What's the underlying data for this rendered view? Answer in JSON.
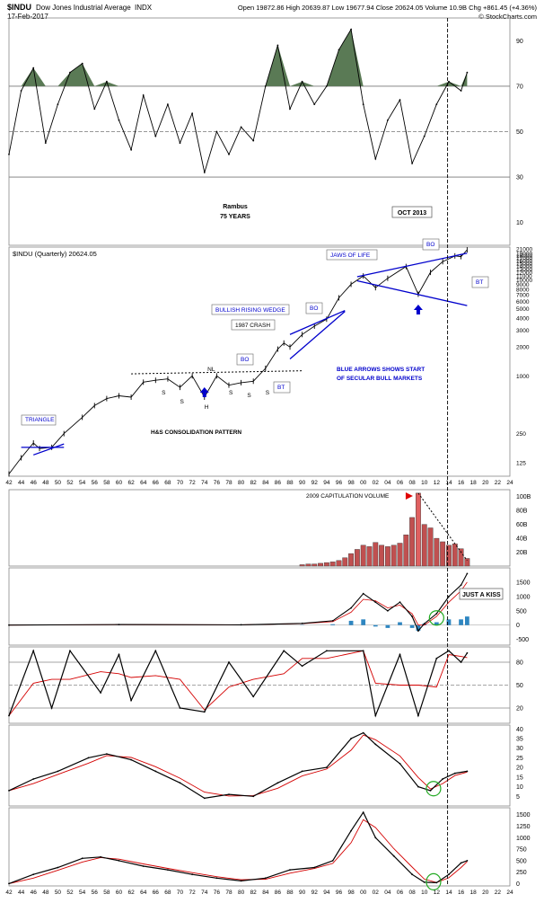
{
  "header": {
    "symbol": "$INDU",
    "name": "Dow Jones Industrial Average",
    "exchange": "INDX",
    "date": "17-Feb-2017",
    "quote": "Open 19872.86  High 20639.87  Low 19677.94  Close 20624.05  Volume 10.9B  Chg +861.45 (+4.36%)",
    "copyright": "© StockCharts.com"
  },
  "colors": {
    "price": "#000000",
    "overlay": "#d40000",
    "trendline": "#0000cc",
    "rsi_fill": "#5a7a55",
    "macd_hist": "#2e86c1",
    "volume_bar": "#c05050",
    "oct_line": "#000000",
    "circle": "#22aa22"
  },
  "chart_data": [
    {
      "id": "rsi-top",
      "type": "line",
      "title": "",
      "y_ticks": [
        "90",
        "70",
        "50",
        "30",
        "10"
      ],
      "ylim": [
        0,
        100
      ],
      "reference_lines": [
        70,
        50,
        30
      ],
      "annotations": {
        "rambus": "Rambus",
        "years": "75 YEARS",
        "oct": "OCT 2013"
      },
      "x": [
        1942,
        1944,
        1946,
        1948,
        1950,
        1952,
        1954,
        1956,
        1958,
        1960,
        1962,
        1964,
        1966,
        1968,
        1970,
        1972,
        1974,
        1976,
        1978,
        1980,
        1982,
        1984,
        1986,
        1988,
        1990,
        1992,
        1994,
        1996,
        1998,
        2000,
        2002,
        2004,
        2006,
        2008,
        2010,
        2012,
        2014,
        2016,
        2017
      ],
      "values": [
        40,
        68,
        78,
        45,
        62,
        76,
        80,
        60,
        72,
        55,
        42,
        66,
        48,
        62,
        45,
        58,
        32,
        50,
        40,
        52,
        46,
        70,
        88,
        60,
        72,
        62,
        70,
        86,
        95,
        62,
        38,
        55,
        64,
        36,
        48,
        62,
        72,
        68,
        76
      ]
    },
    {
      "id": "price",
      "type": "line",
      "title": "$INDU (Quarterly) 20624.05",
      "scale": "log",
      "y_ticks": [
        "21000",
        "19000",
        "18000",
        "17000",
        "16000",
        "15000",
        "14000",
        "13000",
        "12000",
        "11000",
        "10000",
        "9000",
        "8000",
        "7000",
        "6000",
        "5000",
        "4000",
        "3000",
        "2000",
        "1000",
        "250",
        "125"
      ],
      "x_ticks": [
        "42",
        "44",
        "46",
        "48",
        "50",
        "52",
        "54",
        "56",
        "58",
        "60",
        "62",
        "64",
        "66",
        "68",
        "70",
        "72",
        "74",
        "76",
        "78",
        "80",
        "82",
        "84",
        "86",
        "88",
        "90",
        "92",
        "94",
        "96",
        "98",
        "00",
        "02",
        "04",
        "06",
        "08",
        "10",
        "12",
        "14",
        "16",
        "18",
        "20",
        "22",
        "24"
      ],
      "x": [
        1942,
        1944,
        1946,
        1947,
        1949,
        1951,
        1954,
        1956,
        1958,
        1960,
        1962,
        1964,
        1966,
        1968,
        1970,
        1972,
        1974,
        1976,
        1978,
        1980,
        1982,
        1984,
        1986,
        1987,
        1988,
        1990,
        1992,
        1994,
        1996,
        1998,
        2000,
        2002,
        2004,
        2007,
        2009,
        2011,
        2013,
        2015,
        2016,
        2017
      ],
      "values": [
        95,
        140,
        200,
        175,
        180,
        250,
        370,
        490,
        580,
        620,
        600,
        860,
        900,
        930,
        760,
        1000,
        600,
        1000,
        800,
        850,
        880,
        1200,
        1900,
        2200,
        2000,
        2700,
        3300,
        3900,
        6500,
        9000,
        11000,
        8300,
        10400,
        13800,
        7100,
        12000,
        15500,
        17800,
        17500,
        20624
      ],
      "annotations": [
        {
          "text": "TRIANGLE"
        },
        {
          "text": "S"
        },
        {
          "text": "S"
        },
        {
          "text": "NL"
        },
        {
          "text": "S"
        },
        {
          "text": "S"
        },
        {
          "text": "S"
        },
        {
          "text": "H"
        },
        {
          "text": "H&S CONSOLIDATION PATTERN"
        },
        {
          "text": "BO"
        },
        {
          "text": "BT"
        },
        {
          "text": "1987 CRASH"
        },
        {
          "text": "BULLISH RISING WEDGE"
        },
        {
          "text": "BO"
        },
        {
          "text": "JAWS OF LIFE"
        },
        {
          "text": "BO"
        },
        {
          "text": "BT"
        },
        {
          "text": "BLUE ARROWS SHOWS START"
        },
        {
          "text": "OF SECULAR BULL MARKETS"
        }
      ]
    },
    {
      "id": "volume",
      "type": "bar",
      "title": "",
      "y_ticks": [
        "100B",
        "80B",
        "60B",
        "40B",
        "20B"
      ],
      "ylim": [
        0,
        110
      ],
      "annotation": "2009 CAPITULATION VOLUME",
      "x": [
        1990,
        1991,
        1992,
        1993,
        1994,
        1995,
        1996,
        1997,
        1998,
        1999,
        2000,
        2001,
        2002,
        2003,
        2004,
        2005,
        2006,
        2007,
        2008,
        2009,
        2010,
        2011,
        2012,
        2013,
        2014,
        2015,
        2016,
        2017
      ],
      "values": [
        2,
        3,
        3,
        4,
        5,
        6,
        8,
        12,
        18,
        24,
        30,
        28,
        34,
        30,
        28,
        30,
        33,
        45,
        70,
        105,
        60,
        55,
        40,
        35,
        30,
        32,
        25,
        11
      ]
    },
    {
      "id": "macd",
      "type": "line",
      "title": "",
      "y_ticks": [
        "1500",
        "1000",
        "500",
        "0",
        "-500"
      ],
      "ylim": [
        -700,
        2000
      ],
      "annotation": "JUST A KISS",
      "x": [
        1942,
        1960,
        1980,
        1990,
        1995,
        1998,
        2000,
        2002,
        2004,
        2006,
        2008,
        2009,
        2010,
        2012,
        2014,
        2016,
        2017
      ],
      "macd": [
        0,
        20,
        10,
        60,
        150,
        600,
        1100,
        800,
        500,
        800,
        300,
        -200,
        50,
        400,
        1000,
        1400,
        1800
      ],
      "signal": [
        0,
        15,
        10,
        50,
        120,
        450,
        900,
        850,
        600,
        700,
        400,
        0,
        0,
        300,
        800,
        1200,
        1500
      ]
    },
    {
      "id": "stoch",
      "type": "line",
      "title": "",
      "y_ticks": [
        "80",
        "50",
        "20"
      ],
      "ylim": [
        0,
        100
      ],
      "x": [
        1942,
        1946,
        1949,
        1952,
        1957,
        1960,
        1962,
        1966,
        1970,
        1974,
        1978,
        1982,
        1987,
        1990,
        1994,
        2000,
        2002,
        2006,
        2009,
        2012,
        2014,
        2016,
        2017
      ],
      "values": [
        10,
        95,
        20,
        95,
        40,
        90,
        30,
        95,
        20,
        15,
        80,
        35,
        95,
        75,
        95,
        95,
        10,
        90,
        10,
        85,
        95,
        80,
        92
      ]
    },
    {
      "id": "adx",
      "type": "line",
      "title": "",
      "y_ticks": [
        "40",
        "35",
        "30",
        "25",
        "20",
        "15",
        "10",
        "5"
      ],
      "ylim": [
        0,
        42
      ],
      "x": [
        1942,
        1946,
        1950,
        1955,
        1958,
        1962,
        1966,
        1970,
        1974,
        1978,
        1982,
        1986,
        1990,
        1994,
        1998,
        2000,
        2002,
        2006,
        2009,
        2011,
        2013,
        2015,
        2017
      ],
      "values": [
        8,
        14,
        18,
        25,
        27,
        24,
        18,
        12,
        4,
        6,
        5,
        12,
        18,
        20,
        35,
        38,
        32,
        22,
        10,
        8,
        14,
        17,
        18
      ]
    },
    {
      "id": "momentum",
      "type": "line",
      "title": "",
      "y_ticks": [
        "1500",
        "1250",
        "1000",
        "750",
        "500",
        "250",
        "0"
      ],
      "ylim": [
        -50,
        1650
      ],
      "x_ticks": [
        "42",
        "44",
        "46",
        "48",
        "50",
        "52",
        "54",
        "56",
        "58",
        "60",
        "62",
        "64",
        "66",
        "68",
        "70",
        "72",
        "74",
        "76",
        "78",
        "80",
        "82",
        "84",
        "86",
        "88",
        "90",
        "92",
        "94",
        "96",
        "98",
        "00",
        "02",
        "04",
        "06",
        "08",
        "10",
        "12",
        "14",
        "16",
        "18",
        "20",
        "22",
        "24"
      ],
      "x": [
        1942,
        1946,
        1950,
        1954,
        1957,
        1960,
        1964,
        1968,
        1972,
        1976,
        1980,
        1984,
        1988,
        1992,
        1995,
        1998,
        2000,
        2002,
        2005,
        2008,
        2010,
        2012,
        2014,
        2016,
        2017
      ],
      "values": [
        0,
        200,
        350,
        550,
        580,
        500,
        380,
        300,
        200,
        120,
        60,
        120,
        300,
        350,
        500,
        1150,
        1550,
        1000,
        600,
        200,
        30,
        20,
        200,
        450,
        500
      ]
    }
  ]
}
